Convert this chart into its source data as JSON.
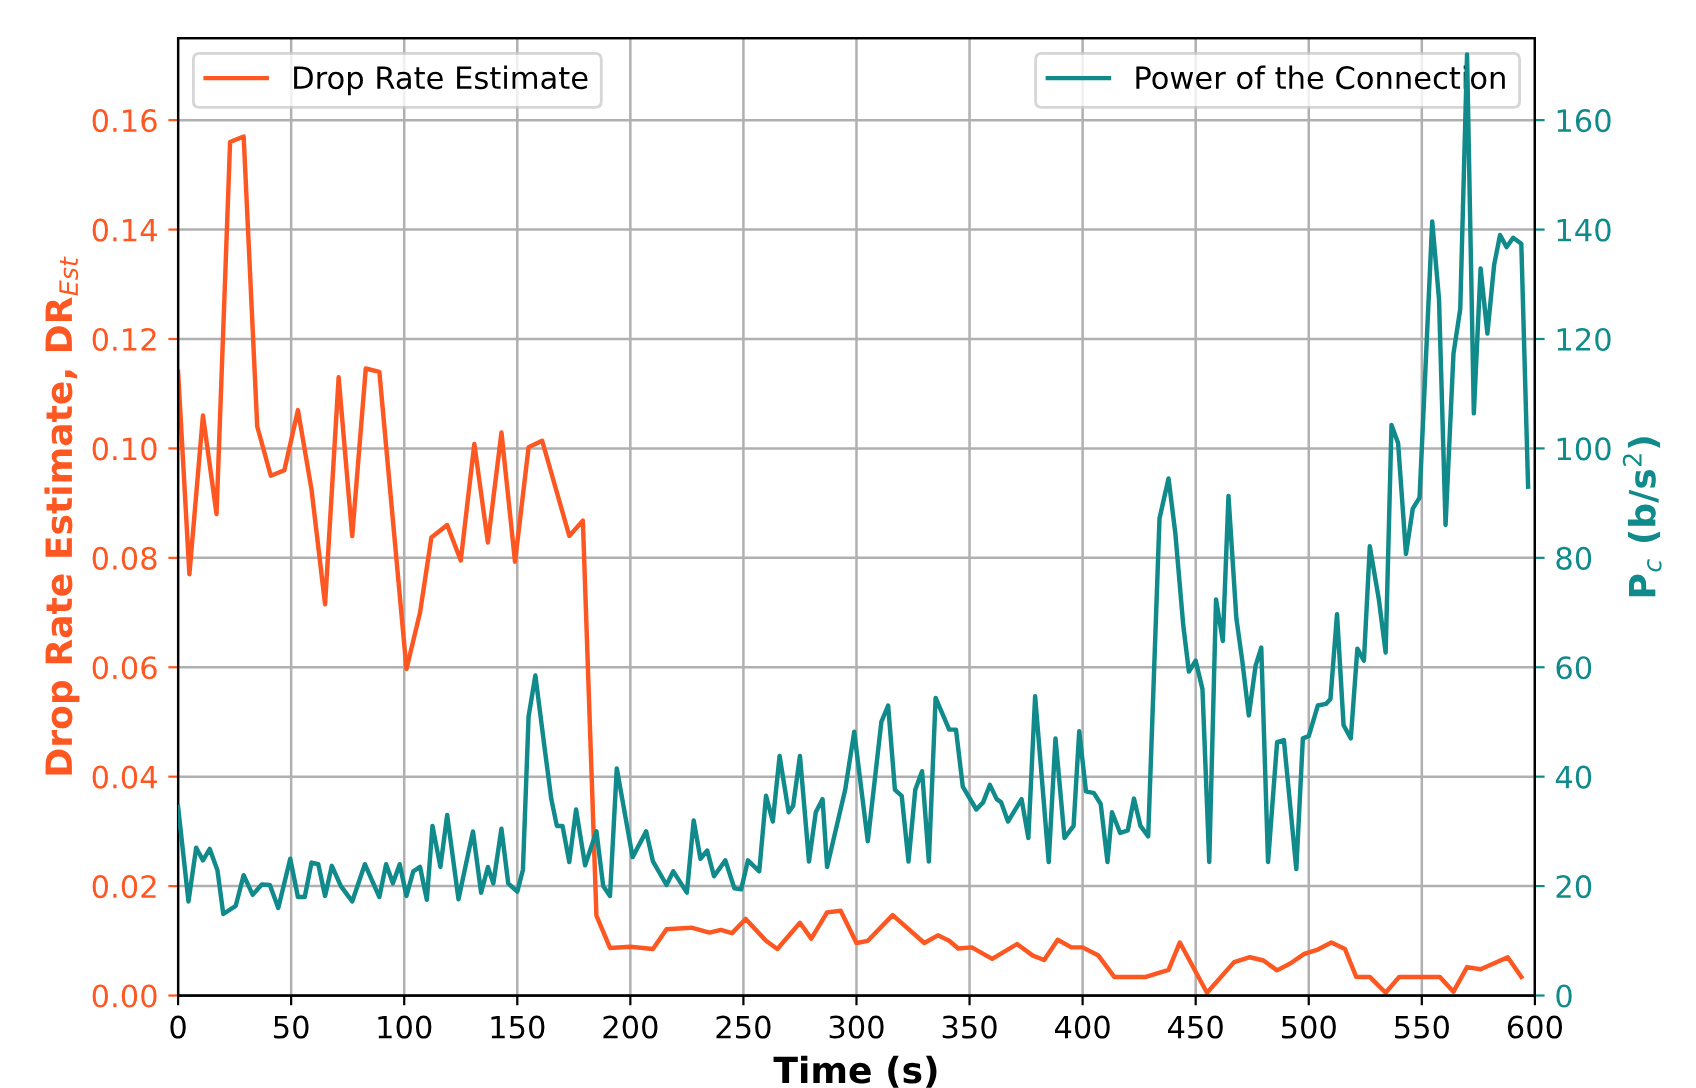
{
  "chart_data": {
    "type": "line",
    "xlabel": "Time (s)",
    "ylabel": "Drop Rate Estimate, DR$_{Est}$",
    "y2label": "P$_{c}$ (b/s$^{2}$)",
    "xlim": [
      0,
      600
    ],
    "xticks": [
      0,
      50,
      100,
      150,
      200,
      250,
      300,
      350,
      400,
      450,
      500,
      550,
      600
    ],
    "ylim": [
      0,
      0.175
    ],
    "yticks": [
      {
        "value": 0,
        "label": "0.00"
      },
      {
        "value": 0.02,
        "label": "0.02"
      },
      {
        "value": 0.04,
        "label": "0.04"
      },
      {
        "value": 0.06,
        "label": "0.06"
      },
      {
        "value": 0.08,
        "label": "0.08"
      },
      {
        "value": 0.1,
        "label": "0.10"
      },
      {
        "value": 0.12,
        "label": "0.12"
      },
      {
        "value": 0.14,
        "label": "0.14"
      },
      {
        "value": 0.16,
        "label": "0.16"
      }
    ],
    "y2lim": [
      0,
      175
    ],
    "y2ticks": [
      0,
      20,
      40,
      60,
      80,
      100,
      120,
      140,
      160
    ],
    "grid": true,
    "legend": "top",
    "line_style": "solid",
    "series": [
      {
        "name": "Drop Rate Estimate",
        "color": "#ff5722",
        "axis": "y",
        "x": [
          0,
          5,
          11,
          17,
          23,
          29,
          35,
          41,
          47,
          53,
          59,
          65,
          71,
          77,
          83,
          89,
          101,
          107,
          112,
          119,
          125,
          131,
          137,
          143,
          149,
          155,
          161,
          173,
          179,
          185,
          191,
          200,
          210,
          216,
          227,
          235,
          240,
          245,
          251,
          260,
          265,
          275,
          280,
          287,
          293,
          300,
          305,
          316,
          330,
          336,
          341,
          345,
          351,
          360,
          371,
          378,
          383,
          389,
          395,
          400,
          407,
          414,
          428,
          438,
          443,
          455,
          467,
          474,
          480,
          486,
          492,
          498,
          504,
          510,
          516,
          521,
          527,
          534,
          540,
          558,
          564,
          570,
          576,
          588,
          594
        ],
        "values": [
          0.114,
          0.077,
          0.106,
          0.088,
          0.156,
          0.157,
          0.104,
          0.095,
          0.096,
          0.107,
          0.0925,
          0.0715,
          0.113,
          0.084,
          0.1146,
          0.114,
          0.0597,
          0.07,
          0.0837,
          0.086,
          0.0795,
          0.1008,
          0.0828,
          0.1029,
          0.0793,
          0.1002,
          0.1014,
          0.084,
          0.0868,
          0.0146,
          0.0087,
          0.0089,
          0.0085,
          0.0121,
          0.0124,
          0.0115,
          0.012,
          0.0114,
          0.014,
          0.01,
          0.0085,
          0.0133,
          0.0104,
          0.0152,
          0.0155,
          0.0096,
          0.01,
          0.0147,
          0.0096,
          0.011,
          0.01,
          0.0086,
          0.0088,
          0.0067,
          0.0094,
          0.0073,
          0.0065,
          0.0102,
          0.0088,
          0.0088,
          0.0073,
          0.0034,
          0.0034,
          0.0047,
          0.0097,
          0.0005,
          0.0061,
          0.007,
          0.0064,
          0.0046,
          0.0059,
          0.0076,
          0.0084,
          0.0097,
          0.0085,
          0.0034,
          0.0034,
          0.0005,
          0.0034,
          0.0034,
          0.0007,
          0.0052,
          0.0048,
          0.007,
          0.0034
        ]
      },
      {
        "name": "Power of the Connection",
        "color": "#108a8a",
        "axis": "y2",
        "x": [
          0,
          4.6,
          8,
          11,
          14,
          17.4,
          20,
          25.5,
          29,
          33,
          37,
          40.6,
          44.3,
          49.6,
          53,
          56,
          59,
          62,
          65,
          68,
          72,
          77,
          82.6,
          89,
          92,
          95,
          98,
          101,
          104,
          107,
          110,
          112.5,
          116,
          119,
          124,
          130.4,
          134,
          137,
          139.4,
          143,
          146,
          150,
          152.5,
          155,
          158,
          162,
          165,
          167.5,
          170,
          173,
          176,
          180,
          185,
          188,
          191,
          194,
          201,
          207,
          210,
          216,
          219,
          225,
          228,
          231,
          234,
          237,
          242,
          246,
          249,
          252,
          257,
          260,
          263,
          266,
          270,
          272,
          275,
          279,
          282,
          285,
          287,
          295,
          299,
          305,
          311,
          314,
          317,
          320,
          323,
          326,
          329,
          332,
          335,
          338.5,
          341,
          344,
          347,
          353,
          356,
          359,
          362,
          364,
          367,
          373,
          376,
          379,
          385,
          388,
          392,
          396,
          398.5,
          401.5,
          405,
          408,
          411,
          413,
          416.6,
          420,
          422.7,
          425.6,
          429,
          434,
          438,
          441,
          444.5,
          447,
          450,
          453,
          456,
          459,
          462,
          464.5,
          468,
          470.6,
          473.5,
          476.5,
          479,
          482,
          486,
          489,
          494.5,
          497.4,
          500,
          504,
          507.6,
          509.6,
          512.5,
          515.4,
          518.6,
          521.5,
          524.4,
          527,
          531,
          534,
          536.6,
          539.5,
          543,
          546,
          549,
          554.6,
          557.6,
          560.5,
          564,
          567,
          570,
          573,
          576,
          579,
          582,
          584.6,
          587.5,
          590.4,
          594,
          597
        ],
        "values": [
          34.5,
          17.2,
          27,
          24.7,
          26.8,
          22.9,
          14.9,
          16.4,
          22,
          18.4,
          20.3,
          20.2,
          16,
          25,
          18,
          18,
          24.3,
          24,
          18.2,
          23.7,
          20,
          17.2,
          24,
          18,
          24,
          20.5,
          24,
          18.2,
          22.7,
          23.5,
          17.5,
          31,
          23.5,
          33,
          17.6,
          30,
          18.8,
          23.5,
          20.5,
          30.5,
          20.5,
          19,
          23,
          51,
          58.5,
          45.5,
          36,
          31,
          31,
          24.4,
          34,
          23.8,
          30,
          20,
          18.2,
          41.5,
          25.3,
          30,
          24.5,
          20.2,
          22.7,
          18.8,
          32,
          25,
          26.5,
          21.8,
          24.7,
          19.6,
          19.4,
          24.7,
          22.7,
          36.5,
          31.8,
          43.8,
          33.5,
          34.7,
          43.8,
          24.5,
          33.5,
          35.9,
          23.5,
          37.6,
          48.2,
          28.2,
          50,
          53,
          37.6,
          36.5,
          24.5,
          37.6,
          41,
          24.5,
          54.4,
          51,
          48.6,
          48.6,
          38.2,
          34,
          35.3,
          38.5,
          35.9,
          35.3,
          31.8,
          35.9,
          28.8,
          54.7,
          24.4,
          47,
          28.8,
          31,
          48.3,
          37.3,
          37,
          35,
          24.4,
          33.5,
          29.7,
          30.2,
          36,
          31,
          29.1,
          87.2,
          94.5,
          84.5,
          67.7,
          59.2,
          61.2,
          56,
          24.4,
          72.4,
          64.8,
          91.3,
          68.9,
          61.2,
          51.2,
          60.3,
          63.6,
          24.4,
          46.3,
          46.7,
          23.1,
          47,
          47.4,
          53,
          53.3,
          54.2,
          69.7,
          49.4,
          47,
          63.4,
          61.2,
          82.1,
          72.4,
          62.7,
          104.3,
          101,
          80.7,
          89,
          91,
          141.5,
          127.3,
          86,
          117.3,
          125.5,
          172,
          106.4,
          132.9,
          121,
          133.6,
          139,
          136.8,
          138.5,
          137.4,
          93
        ]
      }
    ]
  }
}
